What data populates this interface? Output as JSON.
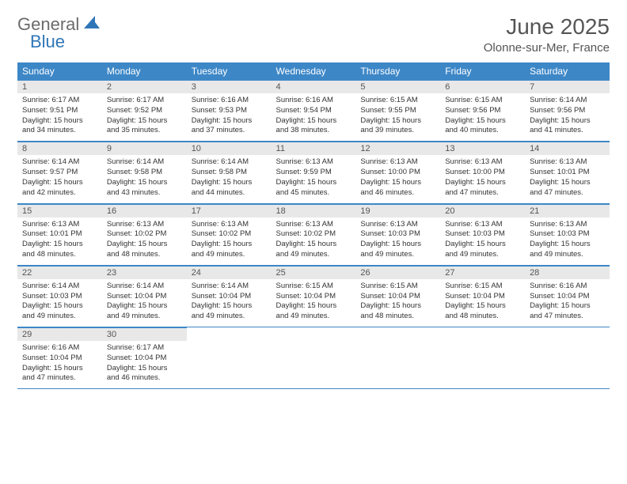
{
  "logo": {
    "text1": "General",
    "text2": "Blue",
    "icon_color": "#2f76b8"
  },
  "title": "June 2025",
  "subtitle": "Olonne-sur-Mer, France",
  "colors": {
    "header_bg": "#3d87c7",
    "header_fg": "#ffffff",
    "daynum_bg": "#e8e8e8",
    "rule": "#3d87c7",
    "text": "#333333",
    "title_color": "#555555"
  },
  "weekdays": [
    "Sunday",
    "Monday",
    "Tuesday",
    "Wednesday",
    "Thursday",
    "Friday",
    "Saturday"
  ],
  "days": [
    {
      "n": 1,
      "sunrise": "6:17 AM",
      "sunset": "9:51 PM",
      "daylight": "15 hours and 34 minutes."
    },
    {
      "n": 2,
      "sunrise": "6:17 AM",
      "sunset": "9:52 PM",
      "daylight": "15 hours and 35 minutes."
    },
    {
      "n": 3,
      "sunrise": "6:16 AM",
      "sunset": "9:53 PM",
      "daylight": "15 hours and 37 minutes."
    },
    {
      "n": 4,
      "sunrise": "6:16 AM",
      "sunset": "9:54 PM",
      "daylight": "15 hours and 38 minutes."
    },
    {
      "n": 5,
      "sunrise": "6:15 AM",
      "sunset": "9:55 PM",
      "daylight": "15 hours and 39 minutes."
    },
    {
      "n": 6,
      "sunrise": "6:15 AM",
      "sunset": "9:56 PM",
      "daylight": "15 hours and 40 minutes."
    },
    {
      "n": 7,
      "sunrise": "6:14 AM",
      "sunset": "9:56 PM",
      "daylight": "15 hours and 41 minutes."
    },
    {
      "n": 8,
      "sunrise": "6:14 AM",
      "sunset": "9:57 PM",
      "daylight": "15 hours and 42 minutes."
    },
    {
      "n": 9,
      "sunrise": "6:14 AM",
      "sunset": "9:58 PM",
      "daylight": "15 hours and 43 minutes."
    },
    {
      "n": 10,
      "sunrise": "6:14 AM",
      "sunset": "9:58 PM",
      "daylight": "15 hours and 44 minutes."
    },
    {
      "n": 11,
      "sunrise": "6:13 AM",
      "sunset": "9:59 PM",
      "daylight": "15 hours and 45 minutes."
    },
    {
      "n": 12,
      "sunrise": "6:13 AM",
      "sunset": "10:00 PM",
      "daylight": "15 hours and 46 minutes."
    },
    {
      "n": 13,
      "sunrise": "6:13 AM",
      "sunset": "10:00 PM",
      "daylight": "15 hours and 47 minutes."
    },
    {
      "n": 14,
      "sunrise": "6:13 AM",
      "sunset": "10:01 PM",
      "daylight": "15 hours and 47 minutes."
    },
    {
      "n": 15,
      "sunrise": "6:13 AM",
      "sunset": "10:01 PM",
      "daylight": "15 hours and 48 minutes."
    },
    {
      "n": 16,
      "sunrise": "6:13 AM",
      "sunset": "10:02 PM",
      "daylight": "15 hours and 48 minutes."
    },
    {
      "n": 17,
      "sunrise": "6:13 AM",
      "sunset": "10:02 PM",
      "daylight": "15 hours and 49 minutes."
    },
    {
      "n": 18,
      "sunrise": "6:13 AM",
      "sunset": "10:02 PM",
      "daylight": "15 hours and 49 minutes."
    },
    {
      "n": 19,
      "sunrise": "6:13 AM",
      "sunset": "10:03 PM",
      "daylight": "15 hours and 49 minutes."
    },
    {
      "n": 20,
      "sunrise": "6:13 AM",
      "sunset": "10:03 PM",
      "daylight": "15 hours and 49 minutes."
    },
    {
      "n": 21,
      "sunrise": "6:13 AM",
      "sunset": "10:03 PM",
      "daylight": "15 hours and 49 minutes."
    },
    {
      "n": 22,
      "sunrise": "6:14 AM",
      "sunset": "10:03 PM",
      "daylight": "15 hours and 49 minutes."
    },
    {
      "n": 23,
      "sunrise": "6:14 AM",
      "sunset": "10:04 PM",
      "daylight": "15 hours and 49 minutes."
    },
    {
      "n": 24,
      "sunrise": "6:14 AM",
      "sunset": "10:04 PM",
      "daylight": "15 hours and 49 minutes."
    },
    {
      "n": 25,
      "sunrise": "6:15 AM",
      "sunset": "10:04 PM",
      "daylight": "15 hours and 49 minutes."
    },
    {
      "n": 26,
      "sunrise": "6:15 AM",
      "sunset": "10:04 PM",
      "daylight": "15 hours and 48 minutes."
    },
    {
      "n": 27,
      "sunrise": "6:15 AM",
      "sunset": "10:04 PM",
      "daylight": "15 hours and 48 minutes."
    },
    {
      "n": 28,
      "sunrise": "6:16 AM",
      "sunset": "10:04 PM",
      "daylight": "15 hours and 47 minutes."
    },
    {
      "n": 29,
      "sunrise": "6:16 AM",
      "sunset": "10:04 PM",
      "daylight": "15 hours and 47 minutes."
    },
    {
      "n": 30,
      "sunrise": "6:17 AM",
      "sunset": "10:04 PM",
      "daylight": "15 hours and 46 minutes."
    }
  ],
  "labels": {
    "sunrise": "Sunrise:",
    "sunset": "Sunset:",
    "daylight": "Daylight:"
  },
  "first_weekday_index": 0,
  "fonts": {
    "title_pt": 28,
    "subtitle_pt": 15,
    "th_pt": 12,
    "daynum_pt": 11,
    "body_pt": 9.5
  }
}
